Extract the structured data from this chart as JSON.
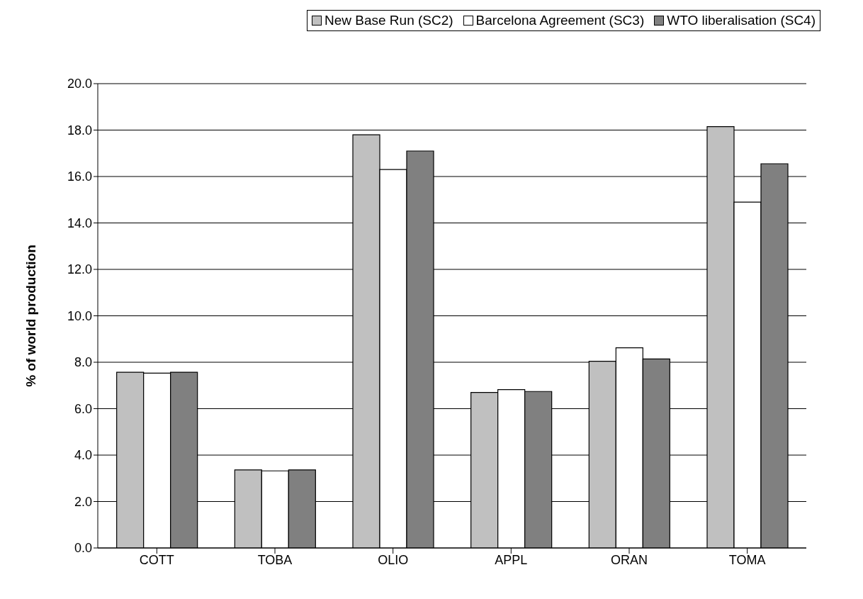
{
  "chart_data": {
    "type": "bar",
    "ylabel": "% of world production",
    "categories": [
      "COTT",
      "TOBA",
      "OLIO",
      "APPL",
      "ORAN",
      "TOMA"
    ],
    "series": [
      {
        "name": "New Base Run (SC2)",
        "color": "#c0c0c0",
        "values": [
          7.57,
          3.36,
          17.8,
          6.7,
          8.04,
          18.15
        ]
      },
      {
        "name": "Barcelona Agreement (SC3)",
        "color": "#ffffff",
        "values": [
          7.53,
          3.32,
          16.3,
          6.82,
          8.62,
          14.9
        ]
      },
      {
        "name": "WTO liberalisation (SC4)",
        "color": "#808080",
        "values": [
          7.57,
          3.36,
          17.1,
          6.74,
          8.14,
          16.55
        ]
      }
    ],
    "ylim": [
      0,
      20
    ],
    "yticks": [
      {
        "value": 0,
        "label": "0.0"
      },
      {
        "value": 2,
        "label": "2.0"
      },
      {
        "value": 4,
        "label": "4.0"
      },
      {
        "value": 6,
        "label": "6.0"
      },
      {
        "value": 8,
        "label": "8.0"
      },
      {
        "value": 10,
        "label": "10.0"
      },
      {
        "value": 12,
        "label": "12.0"
      },
      {
        "value": 14,
        "label": "14.0"
      },
      {
        "value": 16,
        "label": "16.0"
      },
      {
        "value": 18,
        "label": "18.0"
      },
      {
        "value": 20,
        "label": "20.0"
      }
    ],
    "grid": "y",
    "legend": "top right"
  }
}
